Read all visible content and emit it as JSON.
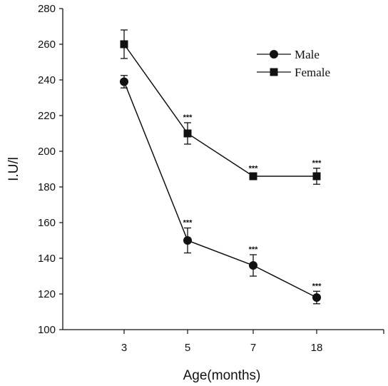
{
  "chart_data": {
    "type": "line",
    "xlabel": "Age(months)",
    "ylabel": "I.U/l",
    "categories": [
      "3",
      "5",
      "7",
      "18"
    ],
    "ylim": [
      100,
      280
    ],
    "yticks": [
      100,
      120,
      140,
      160,
      180,
      200,
      220,
      240,
      260,
      280
    ],
    "legend_position": "top-right",
    "grid": false,
    "series": [
      {
        "name": "Male",
        "marker": "circle",
        "values": [
          239,
          150,
          136,
          118
        ],
        "errors": [
          3.5,
          7,
          6,
          3.5
        ],
        "annotations": [
          "",
          "***",
          "***",
          "***"
        ]
      },
      {
        "name": "Female",
        "marker": "square",
        "values": [
          260,
          210,
          186,
          186
        ],
        "errors": [
          8,
          6,
          1.5,
          4.5
        ],
        "annotations": [
          "",
          "***",
          "***",
          "***"
        ]
      }
    ]
  }
}
